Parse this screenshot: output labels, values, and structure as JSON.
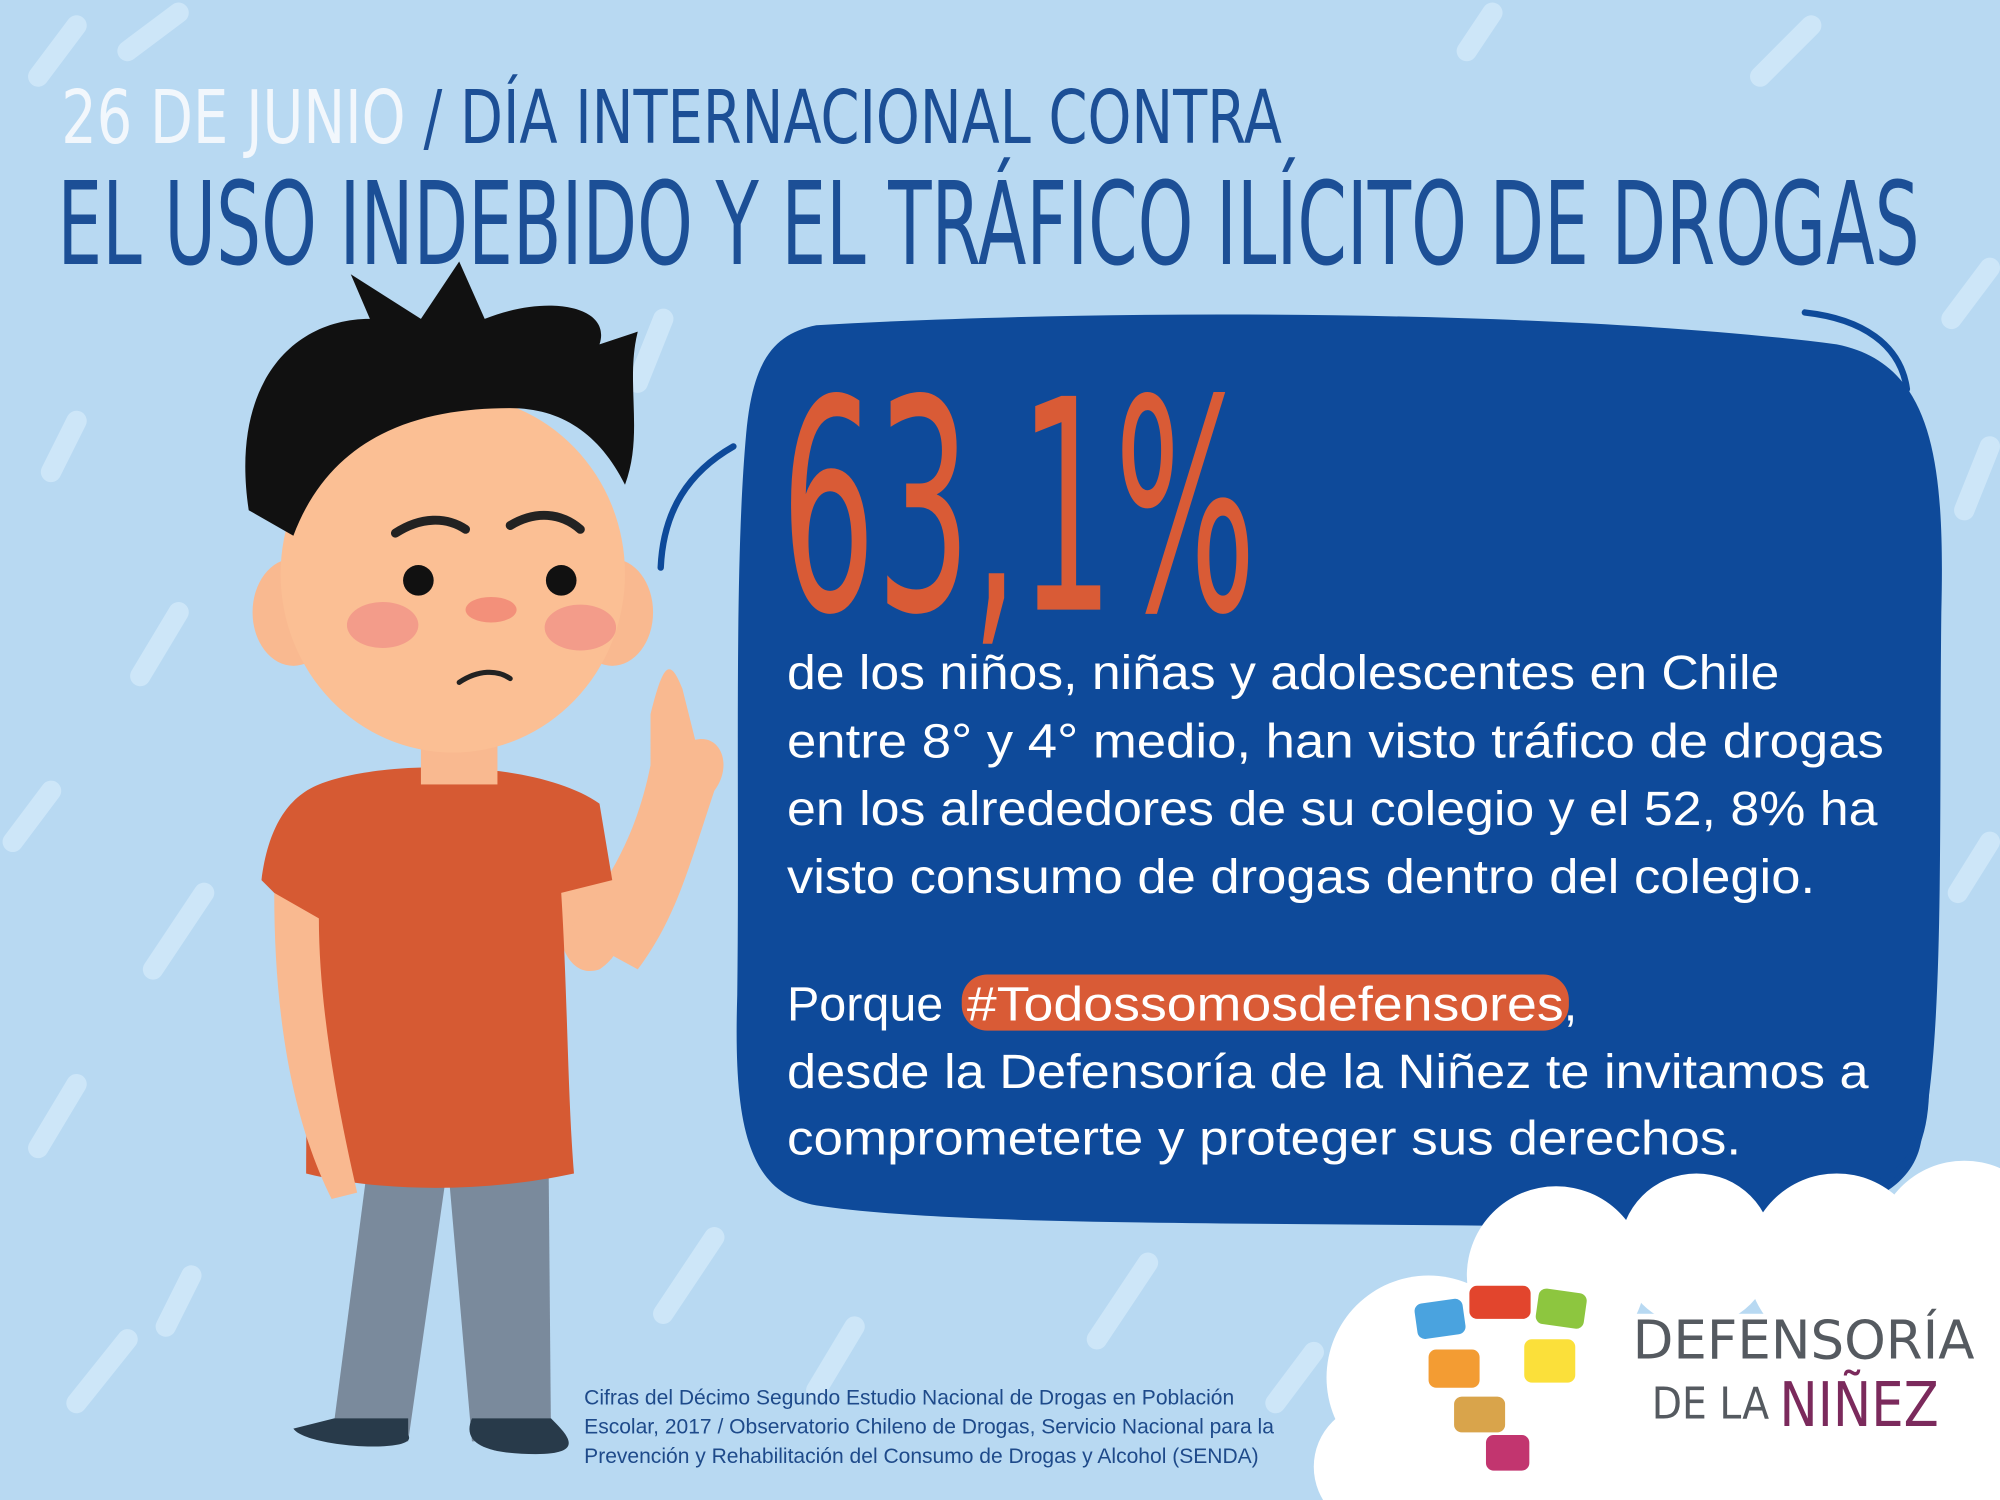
{
  "header": {
    "date": "26 DE JUNIO",
    "title_line1": "/ DÍA INTERNACIONAL CONTRA",
    "title_line2": "EL USO INDEBIDO Y EL TRÁFICO ILÍCITO DE DROGAS"
  },
  "bubble": {
    "stat": "63,1%",
    "body_lines": [
      "de los niños, niñas y adolescentes en Chile",
      "entre 8° y 4° medio, han visto tráfico de drogas",
      "en los alrededores de su colegio y el 52, 8% ha",
      "visto consumo de drogas dentro del colegio."
    ],
    "call_prefix": "Porque ",
    "hashtag": "#Todossomosdefensores",
    "call_suffix": ",",
    "call_lines": [
      "desde la Defensoría de la Niñez te invitamos a",
      "comprometerte y proteger sus derechos."
    ]
  },
  "source_lines": [
    "Cifras del Décimo Segundo Estudio Nacional de Drogas en Población",
    "Escolar, 2017 / Observatorio Chileno de Drogas, Servicio Nacional para la",
    "Prevención y Rehabilitación del Consumo de Drogas y Alcohol (SENDA)"
  ],
  "logo": {
    "line1": "DEFENSORÍA",
    "line2": "DE LA",
    "line3": "NIÑEZ"
  }
}
